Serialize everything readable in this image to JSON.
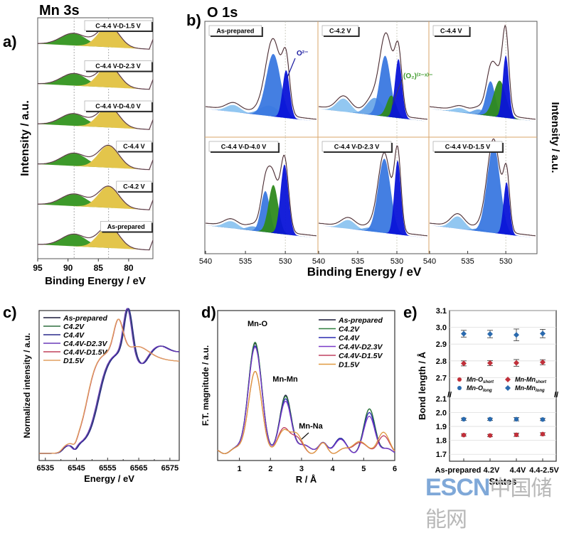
{
  "figure": {
    "watermark": {
      "en": "ESCN",
      "zh": "中国储能网"
    }
  },
  "chart_data": [
    {
      "panel": "a)",
      "type": "area",
      "title": "Mn 3s",
      "xlabel": "Binding Energy / eV",
      "ylabel": "Intensity / a.u.",
      "xlim": [
        95,
        76
      ],
      "xticks": [
        95,
        90,
        85,
        80
      ],
      "colors": {
        "low_be_peak": "#e3c54b",
        "high_be_peak": "#3d9a2a",
        "fit": "#333333",
        "data": "#c06080"
      },
      "series": [
        {
          "name": "C-4.4 V-D-1.5 V",
          "peaks": [
            {
              "center": 89.1,
              "height": 0.55,
              "width": 2.1
            },
            {
              "center": 83.3,
              "height": 1.0,
              "width": 1.7
            }
          ]
        },
        {
          "name": "C-4.4 V-D-2.3 V",
          "peaks": [
            {
              "center": 89.0,
              "height": 0.55,
              "width": 2.1
            },
            {
              "center": 83.3,
              "height": 1.0,
              "width": 1.7
            }
          ]
        },
        {
          "name": "C-4.4 V-D-4.0 V",
          "peaks": [
            {
              "center": 89.1,
              "height": 0.55,
              "width": 2.1
            },
            {
              "center": 83.3,
              "height": 0.95,
              "width": 1.7
            }
          ]
        },
        {
          "name": "C-4.4 V",
          "peaks": [
            {
              "center": 89.0,
              "height": 0.58,
              "width": 2.1
            },
            {
              "center": 83.3,
              "height": 1.0,
              "width": 1.7
            }
          ]
        },
        {
          "name": "C-4.2 V",
          "peaks": [
            {
              "center": 89.0,
              "height": 0.55,
              "width": 2.1
            },
            {
              "center": 83.3,
              "height": 0.97,
              "width": 1.7
            }
          ]
        },
        {
          "name": "As-prepared",
          "peaks": [
            {
              "center": 89.0,
              "height": 0.55,
              "width": 2.0
            },
            {
              "center": 83.3,
              "height": 1.0,
              "width": 1.7
            }
          ]
        }
      ],
      "reference_lines": [
        89.0,
        83.3
      ]
    },
    {
      "panel": "b)",
      "type": "area",
      "title": "O 1s",
      "xlabel": "Binding Energy / eV",
      "ylabel": "Intensity / a.u.",
      "xlim": [
        540,
        526
      ],
      "xticks": [
        540,
        535,
        530
      ],
      "reference_line": 530,
      "annotations": [
        {
          "text": "O²⁻",
          "panel": "As-prepared",
          "color": "#1a1aa0"
        },
        {
          "text": "(O₂)⁽²⁻ˣ⁾⁻",
          "panel": "C-4.2 V",
          "color": "#3d9a2a"
        }
      ],
      "colors": {
        "lattice_O": "#0a14d8",
        "peroxo": "#2e8a1e",
        "adsorbed": "#3a78e0",
        "surface": "#6aa6e8",
        "satellite": "#8cc4f0"
      },
      "series": [
        {
          "name": "As-prepared",
          "peaks": [
            {
              "type": "satellite",
              "center": 536.5,
              "h": 0.08,
              "w": 0.9
            },
            {
              "type": "surface",
              "center": 532.0,
              "h": 0.12,
              "w": 1.2
            },
            {
              "type": "adsorbed",
              "center": 531.5,
              "h": 0.72,
              "w": 0.9
            },
            {
              "type": "lattice_O",
              "center": 529.9,
              "h": 0.55,
              "w": 0.45
            }
          ]
        },
        {
          "name": "C-4.2 V",
          "peaks": [
            {
              "type": "satellite",
              "center": 536.8,
              "h": 0.15,
              "w": 0.9
            },
            {
              "type": "surface",
              "center": 532.8,
              "h": 0.2,
              "w": 1.0
            },
            {
              "type": "adsorbed",
              "center": 531.5,
              "h": 0.7,
              "w": 0.7
            },
            {
              "type": "peroxo",
              "center": 530.7,
              "h": 0.25,
              "w": 0.6
            },
            {
              "type": "lattice_O",
              "center": 529.8,
              "h": 0.68,
              "w": 0.45
            }
          ]
        },
        {
          "name": "C-4.4 V",
          "peaks": [
            {
              "type": "satellite",
              "center": 536.0,
              "h": 0.05,
              "w": 0.9
            },
            {
              "type": "surface",
              "center": 533.5,
              "h": 0.06,
              "w": 0.8
            },
            {
              "type": "adsorbed",
              "center": 532.0,
              "h": 0.4,
              "w": 0.6
            },
            {
              "type": "peroxo",
              "center": 530.8,
              "h": 0.42,
              "w": 0.8
            },
            {
              "type": "lattice_O",
              "center": 530.0,
              "h": 0.72,
              "w": 0.4
            }
          ]
        },
        {
          "name": "C-4.4 V-D-4.0 V",
          "peaks": [
            {
              "type": "satellite",
              "center": 536.8,
              "h": 0.08,
              "w": 0.9
            },
            {
              "type": "surface",
              "center": 534.0,
              "h": 0.05,
              "w": 0.8
            },
            {
              "type": "adsorbed",
              "center": 532.5,
              "h": 0.47,
              "w": 0.55
            },
            {
              "type": "peroxo",
              "center": 531.5,
              "h": 0.55,
              "w": 0.6
            },
            {
              "type": "lattice_O",
              "center": 530.1,
              "h": 0.8,
              "w": 0.5
            }
          ]
        },
        {
          "name": "C-4.4 V-D-2.3 V",
          "peaks": [
            {
              "type": "satellite",
              "center": 536.2,
              "h": 0.1,
              "w": 0.9
            },
            {
              "type": "surface",
              "center": 533.5,
              "h": 0.04,
              "w": 0.8
            },
            {
              "type": "adsorbed",
              "center": 531.6,
              "h": 0.85,
              "w": 0.8
            },
            {
              "type": "lattice_O",
              "center": 529.9,
              "h": 0.85,
              "w": 0.42
            }
          ]
        },
        {
          "name": "C-4.4 V-D-1.5 V",
          "peaks": [
            {
              "type": "satellite",
              "center": 536.3,
              "h": 0.14,
              "w": 0.9
            },
            {
              "type": "surface",
              "center": 533.5,
              "h": 0.03,
              "w": 0.8
            },
            {
              "type": "adsorbed",
              "center": 531.6,
              "h": 1.0,
              "w": 0.85
            },
            {
              "type": "lattice_O",
              "center": 529.9,
              "h": 0.6,
              "w": 0.4
            }
          ]
        }
      ]
    },
    {
      "panel": "c)",
      "type": "line",
      "title": "",
      "xlabel": "Energy / eV",
      "ylabel": "Normalized intensity / a.u.",
      "xlim": [
        6533,
        6578
      ],
      "xticks": [
        6535,
        6545,
        6555,
        6565,
        6575
      ],
      "ylim": [
        0,
        1.45
      ],
      "legend_position": "top-left",
      "series": [
        {
          "name": "As-prepared",
          "color": "#1a1a3a",
          "edge_shift": 0
        },
        {
          "name": "C4.2V",
          "color": "#2e6e3e",
          "edge_shift": 0
        },
        {
          "name": "C4.4V",
          "color": "#2a2a8a",
          "edge_shift": 0.2
        },
        {
          "name": "C4.4V-D2.3V",
          "color": "#6a3ab8",
          "edge_shift": -0.2
        },
        {
          "name": "C4.4V-D1.5V",
          "color": "#c0405a",
          "edge_shift": -1.5
        },
        {
          "name": "D1.5V",
          "color": "#e0a060",
          "edge_shift": -1.6
        }
      ],
      "key_points": {
        "preedge_eV": 6542,
        "main_peak_eV": 6561,
        "reduced_peak_eV": 6558
      }
    },
    {
      "panel": "d)",
      "type": "line",
      "title": "",
      "xlabel": "R / Å",
      "ylabel": "F.T. magnitude / a.u.",
      "xlim": [
        0.3,
        6
      ],
      "xticks": [
        1,
        2,
        3,
        4,
        5,
        6
      ],
      "legend_position": "top-right",
      "annotations": [
        {
          "text": "Mn-O",
          "x": 1.5
        },
        {
          "text": "Mn-Mn",
          "x": 2.5
        },
        {
          "text": "Mn-Na",
          "x": 3.0
        }
      ],
      "series": [
        {
          "name": "As-prepared",
          "color": "#1a1a3a",
          "peaks": [
            [
              1.5,
              0.87
            ],
            [
              2.5,
              0.47
            ],
            [
              3.2,
              0.05
            ],
            [
              4.2,
              0.1
            ],
            [
              5.2,
              0.34
            ]
          ]
        },
        {
          "name": "C4.2V",
          "color": "#2e7e3e",
          "peaks": [
            [
              1.5,
              0.88
            ],
            [
              2.5,
              0.46
            ],
            [
              3.2,
              0.05
            ],
            [
              4.2,
              0.1
            ],
            [
              5.2,
              0.34
            ]
          ]
        },
        {
          "name": "C4.4V",
          "color": "#2a2ab0",
          "peaks": [
            [
              1.5,
              0.85
            ],
            [
              2.5,
              0.44
            ],
            [
              3.2,
              0.05
            ],
            [
              4.2,
              0.1
            ],
            [
              5.2,
              0.31
            ]
          ]
        },
        {
          "name": "C4.4V-D2.3V",
          "color": "#7a3ac8",
          "peaks": [
            [
              1.5,
              0.84
            ],
            [
              2.5,
              0.42
            ],
            [
              3.2,
              0.05
            ],
            [
              4.2,
              0.09
            ],
            [
              5.2,
              0.28
            ]
          ]
        },
        {
          "name": "C4.4V-D1.5V",
          "color": "#c04060",
          "peaks": [
            [
              1.5,
              0.64
            ],
            [
              2.45,
              0.18
            ],
            [
              2.8,
              0.1
            ],
            [
              4.8,
              0.08
            ],
            [
              5.6,
              0.12
            ]
          ]
        },
        {
          "name": "D1.5V",
          "color": "#e09a40",
          "peaks": [
            [
              1.5,
              0.64
            ],
            [
              2.45,
              0.16
            ],
            [
              2.8,
              0.13
            ],
            [
              4.8,
              0.09
            ],
            [
              5.6,
              0.15
            ]
          ]
        }
      ]
    },
    {
      "panel": "e)",
      "type": "scatter",
      "title": "",
      "xlabel": "States",
      "ylabel": "Bond length / Å",
      "categories": [
        "As-prepared",
        "4.2V",
        "4.4V",
        "4.4-2.5V"
      ],
      "ylim_upper": [
        2.6,
        3.1
      ],
      "ylim_lower": [
        1.65,
        2.12
      ],
      "yticks_upper": [
        2.7,
        2.8,
        2.9,
        3.0,
        3.1
      ],
      "yticks_lower": [
        1.7,
        1.8,
        1.9,
        2.0,
        2.1
      ],
      "legend_position": "middle",
      "series": [
        {
          "name": "Mn-O",
          "sub": "short",
          "color": "#c0303a",
          "marker": "circle",
          "values": [
            1.838,
            1.835,
            1.84,
            1.845
          ],
          "errors": [
            0.008,
            0.008,
            0.012,
            0.01
          ]
        },
        {
          "name": "Mn-O",
          "sub": "long",
          "color": "#2a6aae",
          "marker": "circle",
          "values": [
            1.952,
            1.952,
            1.952,
            1.95
          ],
          "errors": [
            0.008,
            0.008,
            0.012,
            0.008
          ]
        },
        {
          "name": "Mn-Mn",
          "sub": "short",
          "color": "#c0303a",
          "marker": "diamond",
          "values": [
            2.785,
            2.787,
            2.788,
            2.792
          ],
          "errors": [
            0.015,
            0.015,
            0.02,
            0.015
          ]
        },
        {
          "name": "Mn-Mn",
          "sub": "long",
          "color": "#2a6aae",
          "marker": "diamond",
          "values": [
            2.962,
            2.96,
            2.955,
            2.963
          ],
          "errors": [
            0.02,
            0.022,
            0.035,
            0.025
          ]
        }
      ]
    }
  ]
}
